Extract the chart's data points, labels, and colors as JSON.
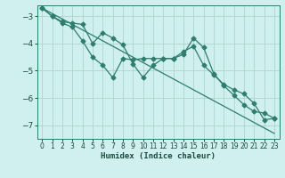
{
  "xlabel": "Humidex (Indice chaleur)",
  "background_color": "#cff0ee",
  "line_color": "#2e7d6e",
  "grid_color": "#aed4ce",
  "xlim": [
    -0.5,
    23.5
  ],
  "ylim": [
    -7.5,
    -2.6
  ],
  "xticks": [
    0,
    1,
    2,
    3,
    4,
    5,
    6,
    7,
    8,
    9,
    10,
    11,
    12,
    13,
    14,
    15,
    16,
    17,
    18,
    19,
    20,
    21,
    22,
    23
  ],
  "yticks": [
    -7,
    -6,
    -5,
    -4,
    -3
  ],
  "series1_y": [
    -2.7,
    -3.0,
    -3.2,
    -3.25,
    -3.3,
    -4.0,
    -3.6,
    -3.8,
    -4.05,
    -4.75,
    -5.25,
    -4.8,
    -4.55,
    -4.55,
    -4.3,
    -4.1,
    -4.8,
    -5.15,
    -5.5,
    -5.7,
    -5.85,
    -6.2,
    -6.8,
    -6.75
  ],
  "series2_y": [
    -2.7,
    -3.0,
    -3.25,
    -3.4,
    -3.9,
    -4.5,
    -4.8,
    -5.25,
    -4.55,
    -4.6,
    -4.55,
    -4.55,
    -4.55,
    -4.55,
    -4.4,
    -3.8,
    -4.15,
    -5.1,
    -5.55,
    -5.9,
    -6.25,
    -6.5,
    -6.55,
    -6.75
  ],
  "trend_y": [
    -2.7,
    -2.9,
    -3.1,
    -3.3,
    -3.5,
    -3.7,
    -3.9,
    -4.1,
    -4.3,
    -4.5,
    -4.7,
    -4.9,
    -5.1,
    -5.3,
    -5.5,
    -5.7,
    -5.9,
    -6.1,
    -6.3,
    -6.5,
    -6.7,
    -6.9,
    -7.1,
    -7.3
  ]
}
